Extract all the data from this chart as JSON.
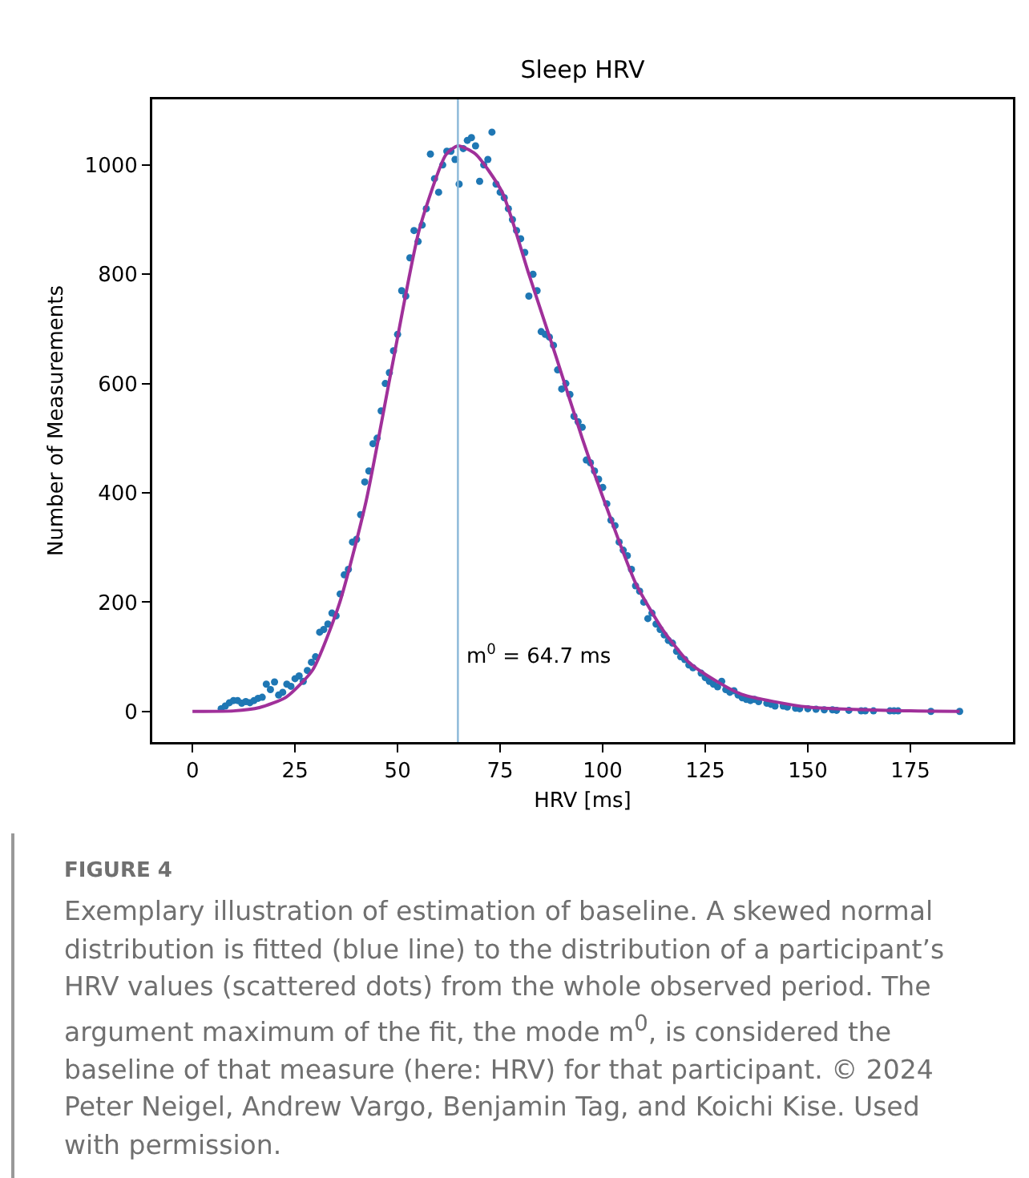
{
  "chart_data": {
    "type": "scatter",
    "title": "Sleep HRV",
    "xlabel": "HRV [ms]",
    "ylabel": "Number of Measurements",
    "xlim": [
      -9.8,
      200
    ],
    "xticks": [
      0,
      25,
      50,
      75,
      100,
      125,
      150,
      175
    ],
    "ylim": [
      -56,
      1120
    ],
    "yticks": [
      0,
      200,
      400,
      600,
      800,
      1000
    ],
    "grid": false,
    "series": [
      {
        "marker": "circle",
        "color": "#1f77b4",
        "x": [
          7,
          8,
          9,
          10,
          11,
          12,
          13,
          14,
          15,
          16,
          17,
          18,
          19,
          20,
          21,
          22,
          23,
          24,
          25,
          26,
          27,
          28,
          29,
          30,
          31,
          32,
          33,
          34,
          35,
          36,
          37,
          38,
          39,
          40,
          41,
          42,
          43,
          44,
          45,
          46,
          47,
          48,
          49,
          50,
          51,
          52,
          53,
          54,
          55,
          56,
          57,
          58,
          59,
          60,
          61,
          62,
          63,
          64,
          65,
          66,
          67,
          68,
          69,
          70,
          71,
          72,
          73,
          74,
          75,
          76,
          77,
          78,
          79,
          80,
          81,
          82,
          83,
          84,
          85,
          86,
          87,
          88,
          89,
          90,
          91,
          92,
          93,
          94,
          95,
          96,
          97,
          98,
          99,
          100,
          101,
          102,
          103,
          104,
          105,
          106,
          107,
          108,
          109,
          110,
          111,
          112,
          113,
          114,
          115,
          116,
          117,
          118,
          119,
          120,
          121,
          122,
          124,
          125,
          126,
          127,
          128,
          129,
          130,
          131,
          132,
          133,
          134,
          135,
          136,
          137,
          138,
          140,
          141,
          142,
          144,
          145,
          147,
          148,
          150,
          152,
          154,
          156,
          157,
          160,
          163,
          164,
          166,
          170,
          171,
          172,
          180,
          187
        ],
        "values": [
          5,
          10,
          16,
          20,
          20,
          15,
          18,
          16,
          20,
          24,
          26,
          50,
          40,
          54,
          30,
          35,
          50,
          46,
          60,
          65,
          55,
          75,
          90,
          100,
          145,
          150,
          160,
          180,
          175,
          215,
          250,
          260,
          310,
          315,
          360,
          420,
          440,
          490,
          500,
          550,
          600,
          620,
          660,
          690,
          770,
          760,
          830,
          880,
          860,
          890,
          920,
          1020,
          975,
          950,
          1000,
          1025,
          1025,
          1010,
          965,
          1030,
          1045,
          1050,
          1035,
          970,
          1000,
          1010,
          1060,
          965,
          950,
          940,
          920,
          900,
          880,
          865,
          840,
          760,
          800,
          770,
          695,
          690,
          685,
          670,
          625,
          590,
          600,
          580,
          540,
          530,
          520,
          460,
          455,
          440,
          425,
          410,
          380,
          350,
          340,
          310,
          295,
          285,
          260,
          230,
          220,
          200,
          170,
          180,
          160,
          150,
          140,
          130,
          125,
          110,
          100,
          95,
          85,
          80,
          70,
          62,
          55,
          50,
          45,
          55,
          40,
          35,
          38,
          30,
          25,
          22,
          20,
          22,
          18,
          15,
          13,
          10,
          10,
          8,
          6,
          5,
          5,
          4,
          3,
          3,
          2,
          2,
          1,
          1,
          1,
          1,
          1,
          1,
          0,
          0
        ]
      },
      {
        "type": "line",
        "marker": "none",
        "color": "#a0309a",
        "x": [
          0,
          10,
          16.3,
          22.8,
          29.3,
          35.8,
          42.3,
          48.8,
          55.3,
          61.8,
          64.7,
          69,
          75.5,
          82,
          88.6,
          95,
          101.6,
          108,
          114.6,
          121,
          127.6,
          134,
          150,
          175,
          187
        ],
        "values": [
          0,
          1,
          7,
          26,
          76,
          197,
          384,
          637,
          882,
          1019,
          1035,
          1020,
          950,
          800,
          650,
          500,
          360,
          235,
          150,
          90,
          56,
          31,
          8,
          1,
          0
        ]
      }
    ],
    "ref_lines": [
      {
        "axis": "x",
        "value": 64.7,
        "label": "m$^{0}$ = 64.7 ms",
        "color": "#8ab8d8"
      }
    ],
    "annotations": [
      "FIGURE 4",
      "Exemplary illustration of estimation of baseline. A skewed normal distribution is fitted (blue line) to the distribution of a participant’s HRV values (scattered dots) from the whole observed period. The argument maximum of the fit, the mode m$^{0}$, is considered the baseline of that measure (here: HRV) for that participant. © 2024 Peter Neigel, Andrew Vargo, Benjamin Tag, and Koichi Kise. Used with permission."
    ]
  }
}
